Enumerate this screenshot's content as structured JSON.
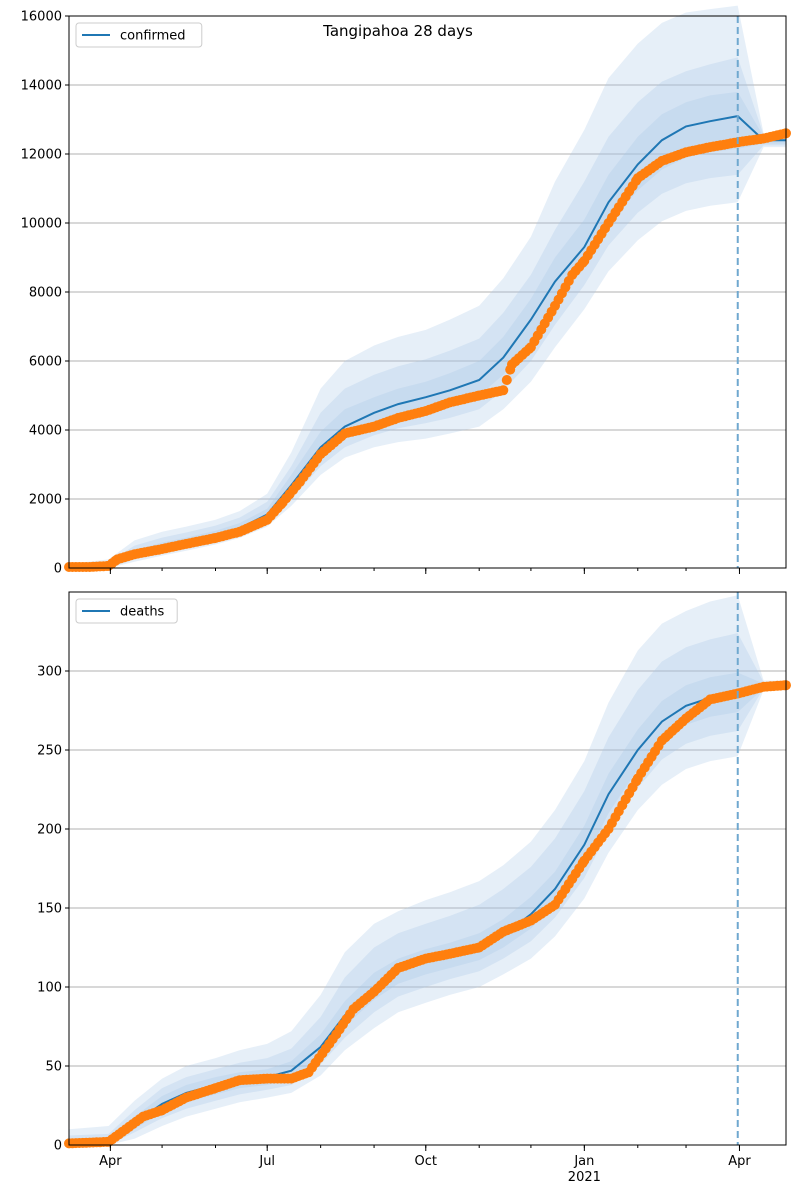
{
  "figure": {
    "title": "Tangipahoa 28 days"
  },
  "x_axis": {
    "ticks": [
      {
        "date": "2020-04-01",
        "label": "Apr"
      },
      {
        "date": "2020-07-01",
        "label": "Jul"
      },
      {
        "date": "2020-10-01",
        "label": "Oct"
      },
      {
        "date": "2021-01-01",
        "label": "Jan"
      },
      {
        "date": "2021-04-01",
        "label": "Apr"
      }
    ],
    "year_label": "2021",
    "year_label_date": "2021-01-01",
    "range": [
      "2020-03-08",
      "2021-04-28"
    ],
    "forecast_start": "2021-03-31"
  },
  "colors": {
    "model": "#1f77b4",
    "observed": "#ff7f0e",
    "band": "#a6c6e6",
    "grid": "#b0b0b0",
    "vline": "#6fa8cf"
  },
  "chart_data": [
    {
      "type": "line",
      "legend": "confirmed",
      "legend_position": "top-left",
      "grid": "y",
      "ylim": [
        0,
        16000
      ],
      "yticks": [
        0,
        2000,
        4000,
        6000,
        8000,
        10000,
        12000,
        14000,
        16000
      ],
      "model_median": {
        "x": [
          "2020-03-08",
          "2020-03-31",
          "2020-04-15",
          "2020-05-01",
          "2020-05-15",
          "2020-06-01",
          "2020-06-15",
          "2020-07-01",
          "2020-07-15",
          "2020-08-01",
          "2020-08-15",
          "2020-09-01",
          "2020-09-15",
          "2020-10-01",
          "2020-10-15",
          "2020-11-01",
          "2020-11-15",
          "2020-12-01",
          "2020-12-15",
          "2021-01-01",
          "2021-01-15",
          "2021-02-01",
          "2021-02-15",
          "2021-03-01",
          "2021-03-15",
          "2021-03-31",
          "2021-04-15",
          "2021-04-28"
        ],
        "y": [
          0,
          50,
          400,
          620,
          760,
          950,
          1150,
          1550,
          2400,
          3500,
          4100,
          4500,
          4750,
          4950,
          5150,
          5450,
          6100,
          7200,
          8300,
          9300,
          10600,
          11700,
          12400,
          12800,
          12950,
          13100,
          12400,
          12400
        ]
      },
      "bands": [
        {
          "label": "",
          "lower": [
            0,
            0,
            180,
            360,
            500,
            680,
            870,
            1200,
            1800,
            2700,
            3200,
            3500,
            3650,
            3750,
            3900,
            4100,
            4600,
            5400,
            6400,
            7500,
            8600,
            9500,
            10050,
            10350,
            10500,
            10600,
            12200,
            12200
          ],
          "upper": [
            120,
            250,
            800,
            1050,
            1200,
            1400,
            1650,
            2150,
            3350,
            5200,
            6000,
            6450,
            6700,
            6900,
            7200,
            7600,
            8400,
            9600,
            11200,
            12700,
            14200,
            15200,
            15800,
            16100,
            16200,
            16300,
            12600,
            12600
          ]
        },
        {
          "label": "",
          "lower": [
            0,
            10,
            250,
            450,
            590,
            780,
            980,
            1320,
            2000,
            2950,
            3500,
            3850,
            4050,
            4200,
            4350,
            4600,
            5150,
            6000,
            7050,
            8200,
            9350,
            10300,
            10850,
            11150,
            11300,
            11400,
            12250,
            12250
          ],
          "upper": [
            80,
            170,
            650,
            880,
            1030,
            1230,
            1460,
            1920,
            2950,
            4500,
            5200,
            5600,
            5850,
            6050,
            6300,
            6650,
            7400,
            8500,
            9800,
            11200,
            12500,
            13500,
            14100,
            14400,
            14600,
            14800,
            12550,
            12550
          ]
        },
        {
          "label": "",
          "lower": [
            0,
            25,
            320,
            530,
            670,
            860,
            1060,
            1420,
            2200,
            3200,
            3800,
            4150,
            4380,
            4550,
            4720,
            5000,
            5600,
            6550,
            7650,
            8750,
            9950,
            10950,
            11550,
            11900,
            12050,
            12150,
            12300,
            12300
          ],
          "upper": [
            50,
            100,
            520,
            740,
            880,
            1080,
            1300,
            1720,
            2700,
            3950,
            4600,
            4950,
            5200,
            5400,
            5650,
            6000,
            6700,
            7800,
            9000,
            10100,
            11400,
            12500,
            13150,
            13500,
            13700,
            13800,
            12500,
            12500
          ]
        }
      ],
      "observed": {
        "x": [
          "2020-03-08",
          "2020-03-20",
          "2020-03-31",
          "2020-04-05",
          "2020-04-15",
          "2020-05-01",
          "2020-05-15",
          "2020-06-01",
          "2020-06-15",
          "2020-07-01",
          "2020-07-10",
          "2020-07-20",
          "2020-08-01",
          "2020-08-15",
          "2020-09-01",
          "2020-09-15",
          "2020-10-01",
          "2020-10-15",
          "2020-11-01",
          "2020-11-15",
          "2020-11-20",
          "2020-12-01",
          "2020-12-15",
          "2020-12-25",
          "2021-01-01",
          "2021-01-15",
          "2021-02-01",
          "2021-02-15",
          "2021-03-01",
          "2021-03-15",
          "2021-04-01",
          "2021-04-15",
          "2021-04-28"
        ],
        "y": [
          30,
          30,
          60,
          250,
          400,
          550,
          700,
          870,
          1050,
          1400,
          1900,
          2500,
          3300,
          3900,
          4100,
          4350,
          4550,
          4800,
          5000,
          5150,
          5900,
          6400,
          7600,
          8500,
          8900,
          10000,
          11300,
          11800,
          12050,
          12200,
          12350,
          12450,
          12600
        ]
      }
    },
    {
      "type": "line",
      "legend": "deaths",
      "legend_position": "top-left",
      "grid": "y",
      "ylim": [
        0,
        350
      ],
      "yticks": [
        0,
        50,
        100,
        150,
        200,
        250,
        300
      ],
      "model_median": {
        "x": [
          "2020-03-08",
          "2020-03-31",
          "2020-04-15",
          "2020-05-01",
          "2020-05-15",
          "2020-06-01",
          "2020-06-15",
          "2020-07-01",
          "2020-07-15",
          "2020-08-01",
          "2020-08-15",
          "2020-09-01",
          "2020-09-15",
          "2020-10-01",
          "2020-10-15",
          "2020-11-01",
          "2020-11-15",
          "2020-12-01",
          "2020-12-15",
          "2021-01-01",
          "2021-01-15",
          "2021-02-01",
          "2021-02-15",
          "2021-03-01",
          "2021-03-15",
          "2021-03-31",
          "2021-04-15",
          "2021-04-28"
        ],
        "y": [
          0,
          1,
          14,
          26,
          33,
          38,
          41,
          43,
          47,
          62,
          82,
          100,
          110,
          116,
          120,
          125,
          133,
          146,
          162,
          190,
          222,
          250,
          268,
          278,
          283,
          286,
          290,
          290
        ]
      },
      "bands": [
        {
          "label": "",
          "lower": [
            0,
            0,
            4,
            12,
            18,
            23,
            27,
            30,
            33,
            44,
            60,
            74,
            84,
            90,
            95,
            100,
            108,
            118,
            132,
            156,
            185,
            212,
            228,
            238,
            243,
            246,
            288,
            288
          ],
          "upper": [
            10,
            12,
            28,
            42,
            50,
            55,
            60,
            64,
            72,
            95,
            122,
            140,
            148,
            155,
            160,
            167,
            177,
            192,
            212,
            243,
            280,
            313,
            330,
            338,
            344,
            348,
            294,
            294
          ]
        },
        {
          "label": "",
          "lower": [
            0,
            0,
            8,
            17,
            23,
            28,
            32,
            35,
            38,
            51,
            68,
            84,
            94,
            100,
            105,
            110,
            118,
            129,
            144,
            169,
            199,
            226,
            244,
            254,
            259,
            262,
            289,
            289
          ],
          "upper": [
            6,
            7,
            22,
            36,
            43,
            48,
            52,
            55,
            61,
            81,
            106,
            125,
            134,
            140,
            145,
            152,
            162,
            176,
            194,
            224,
            258,
            288,
            306,
            315,
            320,
            324,
            293,
            293
          ]
        },
        {
          "label": "",
          "lower": [
            0,
            0,
            10,
            21,
            27,
            32,
            36,
            38,
            42,
            56,
            75,
            92,
            102,
            108,
            112,
            117,
            125,
            137,
            153,
            179,
            210,
            238,
            256,
            266,
            271,
            274,
            289,
            289
          ],
          "upper": [
            3,
            4,
            18,
            31,
            38,
            43,
            46,
            48,
            53,
            70,
            91,
            109,
            118,
            124,
            128,
            134,
            143,
            157,
            173,
            202,
            235,
            263,
            281,
            291,
            296,
            299,
            292,
            292
          ]
        }
      ],
      "observed": {
        "x": [
          "2020-03-08",
          "2020-03-31",
          "2020-04-10",
          "2020-04-20",
          "2020-05-01",
          "2020-05-15",
          "2020-06-01",
          "2020-06-15",
          "2020-07-01",
          "2020-07-15",
          "2020-07-25",
          "2020-08-10",
          "2020-08-20",
          "2020-09-01",
          "2020-09-15",
          "2020-10-01",
          "2020-10-15",
          "2020-11-01",
          "2020-11-15",
          "2020-12-01",
          "2020-12-15",
          "2021-01-01",
          "2021-01-15",
          "2021-02-01",
          "2021-02-15",
          "2021-03-01",
          "2021-03-15",
          "2021-04-01",
          "2021-04-15",
          "2021-04-28"
        ],
        "y": [
          1,
          2,
          10,
          18,
          22,
          30,
          36,
          41,
          42,
          42,
          46,
          70,
          86,
          97,
          112,
          118,
          121,
          125,
          135,
          142,
          152,
          180,
          200,
          232,
          256,
          270,
          282,
          286,
          290,
          291
        ]
      }
    }
  ]
}
